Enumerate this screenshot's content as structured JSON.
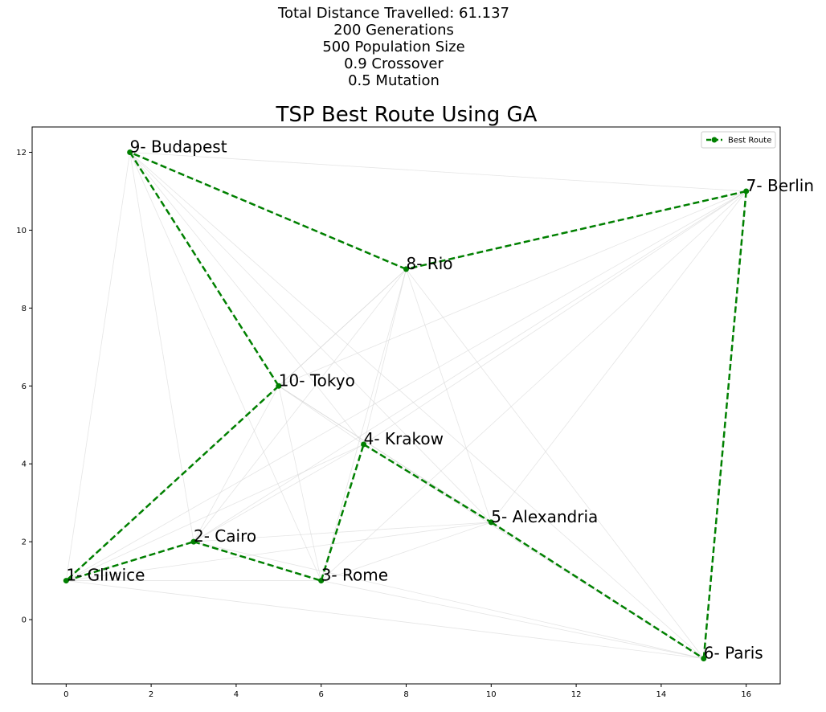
{
  "header": {
    "lines": [
      "Total Distance Travelled: 61.137",
      "200 Generations",
      "500 Population Size",
      "0.9 Crossover",
      "0.5 Mutation"
    ]
  },
  "chart_data": {
    "type": "line",
    "title": "TSP Best Route Using GA",
    "xlabel": "",
    "ylabel": "",
    "xlim": [
      -0.8,
      16.8
    ],
    "ylim": [
      -1.65,
      12.65
    ],
    "x_ticks": [
      0,
      2,
      4,
      6,
      8,
      10,
      12,
      14,
      16
    ],
    "y_ticks": [
      0,
      2,
      4,
      6,
      8,
      10,
      12
    ],
    "grid": false,
    "legend": {
      "position": "top-right",
      "entries": [
        "Best Route"
      ]
    },
    "colors": {
      "route": "#008000",
      "edges": "#d3d3d3"
    },
    "cities": [
      {
        "label": "1- Gliwice",
        "x": 0,
        "y": 1
      },
      {
        "label": "2- Cairo",
        "x": 3,
        "y": 2
      },
      {
        "label": "3- Rome",
        "x": 6,
        "y": 1
      },
      {
        "label": "4- Krakow",
        "x": 7,
        "y": 4.5
      },
      {
        "label": "5- Alexandria",
        "x": 10,
        "y": 2.5
      },
      {
        "label": "6- Paris",
        "x": 15,
        "y": -1
      },
      {
        "label": "7- Berlin",
        "x": 16,
        "y": 11
      },
      {
        "label": "8- Rio",
        "x": 8,
        "y": 9
      },
      {
        "label": "9- Budapest",
        "x": 1.5,
        "y": 12
      },
      {
        "label": "10- Tokyo",
        "x": 5,
        "y": 6
      }
    ],
    "series": [
      {
        "name": "Best Route",
        "style": "dashed",
        "route_order": [
          1,
          2,
          3,
          4,
          5,
          6,
          7,
          8,
          9,
          10,
          1
        ]
      }
    ]
  }
}
